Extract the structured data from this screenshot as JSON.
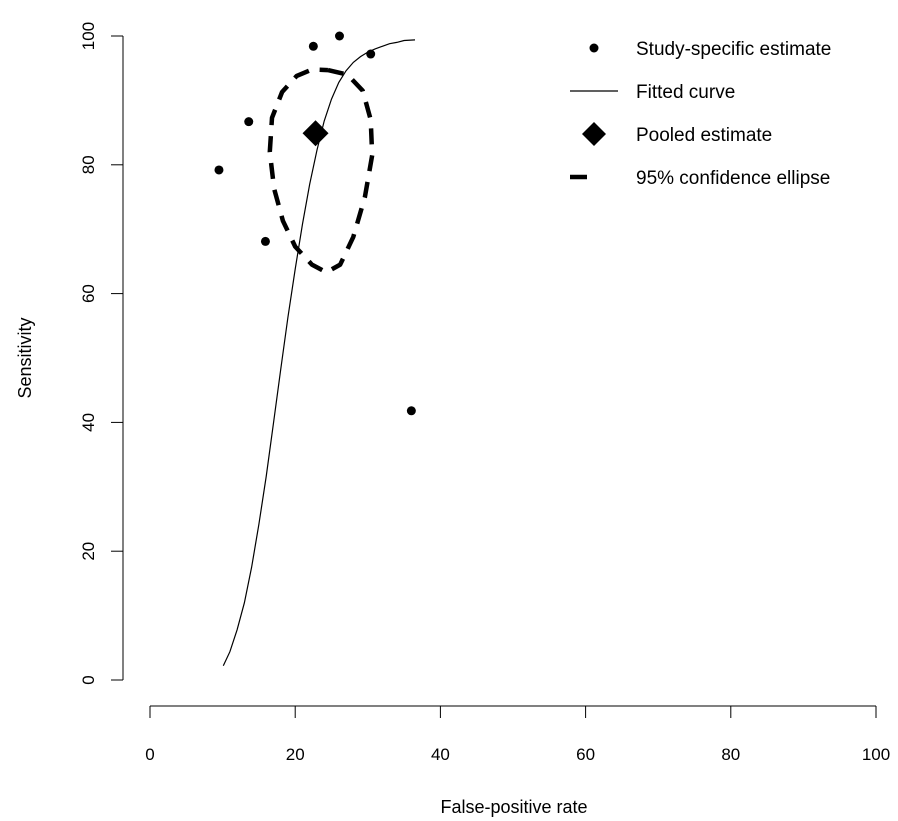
{
  "chart_data": {
    "type": "scatter",
    "title": "",
    "xlabel": "False-positive rate",
    "ylabel": "Sensitivity",
    "xlim": [
      0,
      100
    ],
    "ylim": [
      0,
      100
    ],
    "x_ticks": [
      "0",
      "20",
      "40",
      "60",
      "80",
      "100"
    ],
    "y_ticks": [
      "0",
      "20",
      "40",
      "60",
      "80",
      "100"
    ],
    "grid": false,
    "legend_position": "top-right",
    "legend": [
      {
        "label": "Study-specific estimate",
        "kind": "point"
      },
      {
        "label": "Fitted curve",
        "kind": "line"
      },
      {
        "label": "Pooled estimate",
        "kind": "diamond"
      },
      {
        "label": "95% confidence ellipse",
        "kind": "dashed"
      }
    ],
    "study_points": [
      {
        "x": 9.5,
        "y": 79.2
      },
      {
        "x": 13.6,
        "y": 86.7
      },
      {
        "x": 15.9,
        "y": 68.1
      },
      {
        "x": 22.5,
        "y": 98.4
      },
      {
        "x": 26.1,
        "y": 100.0
      },
      {
        "x": 30.4,
        "y": 97.2
      },
      {
        "x": 36.0,
        "y": 41.8
      }
    ],
    "pooled_estimate": {
      "x": 22.8,
      "y": 84.9
    },
    "fitted_curve": [
      {
        "x": 10.1,
        "y": 2.2
      },
      {
        "x": 11.0,
        "y": 4.4
      },
      {
        "x": 12.0,
        "y": 7.8
      },
      {
        "x": 13.0,
        "y": 12.0
      },
      {
        "x": 14.0,
        "y": 17.5
      },
      {
        "x": 15.0,
        "y": 24.2
      },
      {
        "x": 16.0,
        "y": 31.6
      },
      {
        "x": 17.0,
        "y": 39.8
      },
      {
        "x": 18.0,
        "y": 48.2
      },
      {
        "x": 19.0,
        "y": 56.3
      },
      {
        "x": 20.0,
        "y": 63.8
      },
      {
        "x": 21.0,
        "y": 70.8
      },
      {
        "x": 22.0,
        "y": 77.0
      },
      {
        "x": 23.0,
        "y": 82.3
      },
      {
        "x": 24.0,
        "y": 86.8
      },
      {
        "x": 25.0,
        "y": 90.2
      },
      {
        "x": 26.0,
        "y": 92.8
      },
      {
        "x": 27.0,
        "y": 94.6
      },
      {
        "x": 28.0,
        "y": 95.9
      },
      {
        "x": 29.0,
        "y": 96.8
      },
      {
        "x": 30.0,
        "y": 97.5
      },
      {
        "x": 31.0,
        "y": 98.0
      },
      {
        "x": 32.0,
        "y": 98.4
      },
      {
        "x": 33.0,
        "y": 98.8
      },
      {
        "x": 34.0,
        "y": 99.0
      },
      {
        "x": 35.0,
        "y": 99.3
      },
      {
        "x": 36.5,
        "y": 99.4
      }
    ],
    "confidence_ellipse": [
      {
        "x": 24.5,
        "y": 94.7
      },
      {
        "x": 27.2,
        "y": 94.0
      },
      {
        "x": 29.3,
        "y": 91.5
      },
      {
        "x": 30.4,
        "y": 87.0
      },
      {
        "x": 30.6,
        "y": 81.5
      },
      {
        "x": 29.6,
        "y": 75.0
      },
      {
        "x": 28.0,
        "y": 68.8
      },
      {
        "x": 26.2,
        "y": 64.5
      },
      {
        "x": 24.3,
        "y": 63.3
      },
      {
        "x": 22.3,
        "y": 64.5
      },
      {
        "x": 20.0,
        "y": 67.3
      },
      {
        "x": 18.3,
        "y": 71.3
      },
      {
        "x": 17.1,
        "y": 76.3
      },
      {
        "x": 16.5,
        "y": 82.0
      },
      {
        "x": 16.8,
        "y": 87.3
      },
      {
        "x": 18.2,
        "y": 91.3
      },
      {
        "x": 20.2,
        "y": 93.8
      },
      {
        "x": 22.3,
        "y": 94.8
      },
      {
        "x": 24.5,
        "y": 94.7
      }
    ]
  }
}
